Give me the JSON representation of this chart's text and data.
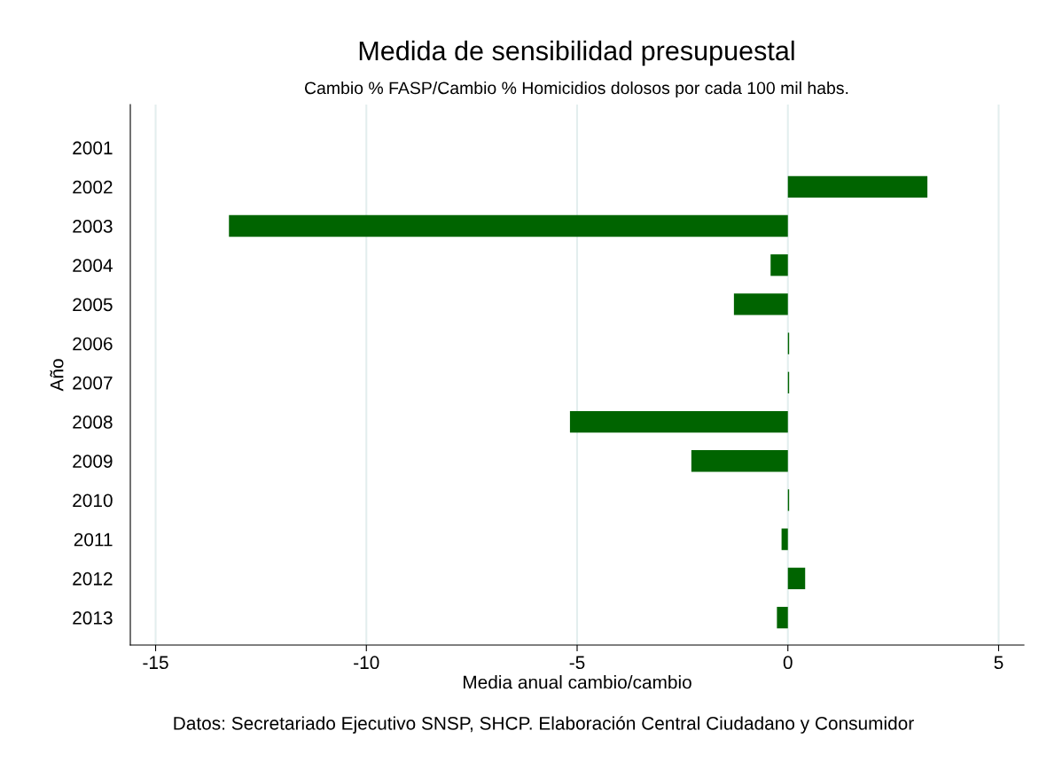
{
  "chart_data": {
    "type": "bar",
    "orientation": "horizontal",
    "title": "Medida de sensibilidad presupuestal",
    "subtitle": "Cambio % FASP/Cambio % Homicidios dolosos por cada 100 mil habs.",
    "xlabel": "Media anual cambio/cambio",
    "ylabel": "Año",
    "categories": [
      "2001",
      "2002",
      "2003",
      "2004",
      "2005",
      "2006",
      "2007",
      "2008",
      "2009",
      "2010",
      "2011",
      "2012",
      "2013"
    ],
    "values": [
      null,
      3.31,
      -13.26,
      -0.41,
      -1.28,
      0.03,
      0.03,
      -5.17,
      -2.29,
      0.03,
      -0.15,
      0.41,
      -0.26
    ],
    "color": "#006400",
    "xlim": [
      -15.6,
      5.6
    ],
    "xticks": [
      -15,
      -10,
      -5,
      0,
      5
    ],
    "grid": "x",
    "annotations": [
      "Datos: Secretariado Ejecutivo SNSP, SHCP. Elaboración Central Ciudadano y Consumidor"
    ]
  }
}
